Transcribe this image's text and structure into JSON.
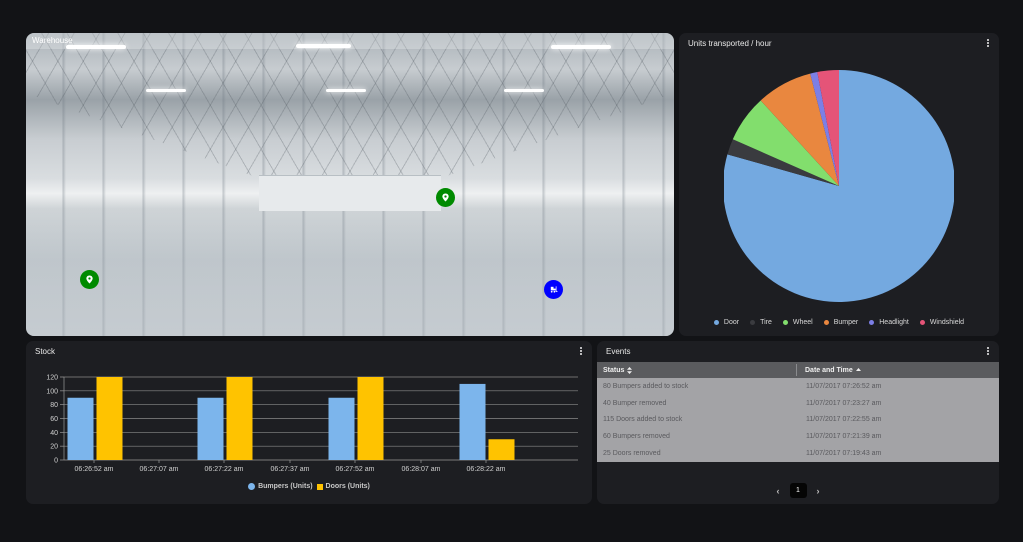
{
  "warehouse": {
    "title": "Warehouse",
    "markers": [
      {
        "type": "location-pin",
        "color": "#008a00",
        "x": 63,
        "y": 247
      },
      {
        "type": "location-pin",
        "color": "#008a00",
        "x": 420,
        "y": 164
      },
      {
        "type": "forklift",
        "color": "#0000ff",
        "x": 527,
        "y": 257
      }
    ]
  },
  "pie_panel": {
    "title": "Units transported / hour",
    "legend": [
      {
        "label": "Door",
        "color": "#74a9e0"
      },
      {
        "label": "Tire",
        "color": "#3a3b3f"
      },
      {
        "label": "Wheel",
        "color": "#82de6d"
      },
      {
        "label": "Bumper",
        "color": "#e9873f"
      },
      {
        "label": "Headlight",
        "color": "#7c7fe6"
      },
      {
        "label": "Windshield",
        "color": "#e55478"
      }
    ]
  },
  "stock_panel": {
    "title": "Stock",
    "legend": [
      {
        "label": "Bumpers (Units)",
        "color": "#7cb5ec"
      },
      {
        "label": "Doors (Units)",
        "color": "#ffc300"
      }
    ]
  },
  "events_panel": {
    "title": "Events",
    "columns": [
      {
        "label": "Status",
        "sort_icon": "sort-both"
      },
      {
        "label": "Date and Time",
        "sort_icon": "sort-asc"
      }
    ],
    "rows": [
      {
        "status": "80 Bumpers added to stock",
        "datetime": "11/07/2017 07:26:52 am"
      },
      {
        "status": "40 Bumper removed",
        "datetime": "11/07/2017 07:23:27 am"
      },
      {
        "status": "115 Doors added to stock",
        "datetime": "11/07/2017 07:22:55 am"
      },
      {
        "status": "60 Bumpers removed",
        "datetime": "11/07/2017 07:21:39 am"
      },
      {
        "status": "25 Doors removed",
        "datetime": "11/07/2017 07:19:43 am"
      }
    ],
    "pagination": {
      "prev": "‹",
      "current": "1",
      "next": "›"
    }
  },
  "chart_data": [
    {
      "type": "pie",
      "title": "Units transported / hour",
      "categories": [
        "Door",
        "Tire",
        "Wheel",
        "Bumper",
        "Headlight",
        "Windshield"
      ],
      "values": [
        79.4,
        2.2,
        6.6,
        7.8,
        1.0,
        3.0
      ],
      "colors": [
        "#74a9e0",
        "#3a3b3f",
        "#82de6d",
        "#e9873f",
        "#7c7fe6",
        "#e55478"
      ],
      "legend_position": "bottom"
    },
    {
      "type": "bar",
      "title": "Stock",
      "categories": [
        "06:26:52 am",
        "06:27:07 am",
        "06:27:22 am",
        "06:27:37 am",
        "06:27:52 am",
        "06:28:07 am",
        "06:28:22 am"
      ],
      "bar_slots": [
        "06:26:52 am",
        "06:27:22 am",
        "06:27:52 am",
        "06:28:22 am"
      ],
      "series": [
        {
          "name": "Bumpers (Units)",
          "color": "#7cb5ec",
          "values": [
            90,
            90,
            90,
            110
          ]
        },
        {
          "name": "Doors (Units)",
          "color": "#ffc300",
          "values": [
            120,
            120,
            120,
            30
          ]
        }
      ],
      "yticks": [
        0,
        20,
        40,
        60,
        80,
        100,
        120
      ],
      "ylim": [
        0,
        120
      ],
      "xlabel": "",
      "ylabel": "",
      "grid": true,
      "legend_position": "bottom"
    }
  ]
}
